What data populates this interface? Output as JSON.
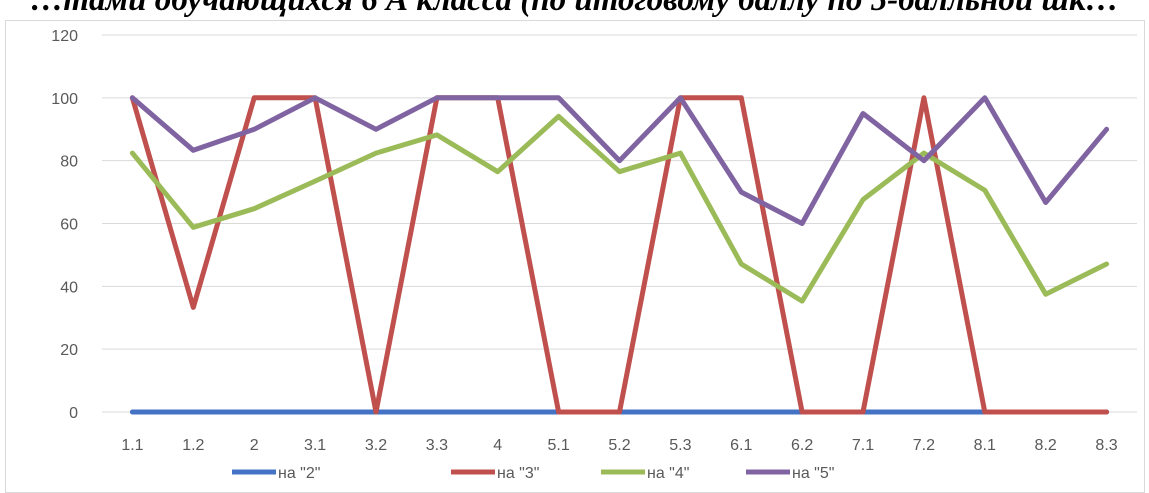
{
  "chart_data": {
    "type": "line",
    "title": "…тами обучающихся 6 А класса (по итоговому баллу по 5-балльной шк…",
    "categories": [
      "1.1",
      "1.2",
      "2",
      "3.1",
      "3.2",
      "3.3",
      "4",
      "5.1",
      "5.2",
      "5.3",
      "6.1",
      "6.2",
      "7.1",
      "7.2",
      "8.1",
      "8.2",
      "8.3"
    ],
    "ylim": [
      0,
      120
    ],
    "yticks": [
      0,
      20,
      40,
      60,
      80,
      100,
      120
    ],
    "grid": true,
    "legend": "bottom",
    "series": [
      {
        "name": "на \"2\"",
        "color": "#4472c4",
        "values": [
          0,
          0,
          0,
          0,
          0,
          0,
          0,
          0,
          0,
          0,
          0,
          0,
          0,
          0,
          0,
          0,
          0
        ]
      },
      {
        "name": "на \"3\"",
        "color": "#c0504d",
        "values": [
          100,
          33.3,
          100,
          100,
          0,
          100,
          100,
          0,
          0,
          100,
          100,
          0,
          0,
          100,
          0,
          0,
          0
        ]
      },
      {
        "name": "на \"4\"",
        "color": "#9bbb59",
        "values": [
          82.4,
          58.8,
          64.7,
          73.5,
          82.4,
          88.2,
          76.5,
          94.1,
          76.5,
          82.4,
          47.1,
          35.3,
          67.6,
          82.4,
          70.6,
          37.5,
          47.1
        ]
      },
      {
        "name": "на \"5\"",
        "color": "#8064a2",
        "values": [
          100,
          83.3,
          90,
          100,
          90,
          100,
          100,
          100,
          80,
          100,
          70,
          60,
          95,
          80,
          100,
          66.7,
          90
        ]
      }
    ]
  }
}
